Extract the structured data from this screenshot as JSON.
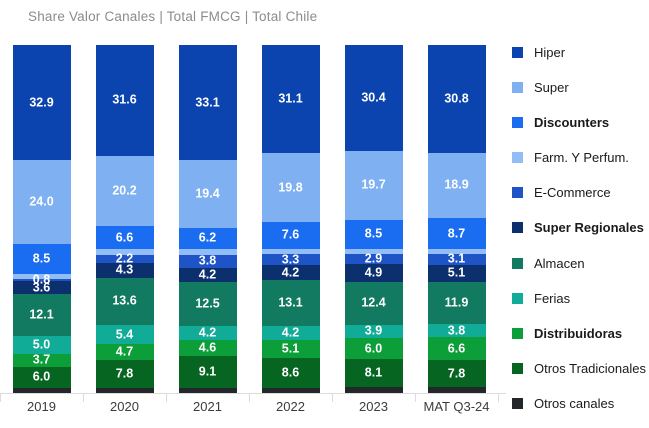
{
  "title": "Share Valor Canales | Total FMCG | Total Chile",
  "x_axis": {
    "labels": [
      "2019",
      "2020",
      "2021",
      "2022",
      "2023",
      "MAT Q3-24"
    ]
  },
  "colors": {
    "axis_line": "#dcdcdc",
    "title_text": "#8c8c8c",
    "value_label_text": "#ffffff"
  },
  "chart_data": {
    "type": "bar",
    "stacked": true,
    "percent_total": 100,
    "title": "Share Valor Canales | Total FMCG | Total Chile",
    "categories": [
      "2019",
      "2020",
      "2021",
      "2022",
      "2023",
      "MAT Q3-24"
    ],
    "legend_position": "right",
    "grid": false,
    "series": [
      {
        "name": "Hiper",
        "color": "#0b44af",
        "bold": false,
        "show_labels": true,
        "values": [
          32.9,
          31.6,
          33.1,
          31.1,
          30.4,
          30.8
        ]
      },
      {
        "name": "Super",
        "color": "#7fb0f2",
        "bold": false,
        "show_labels": true,
        "values": [
          24.0,
          20.2,
          19.4,
          19.8,
          19.7,
          18.9
        ]
      },
      {
        "name": "Discounters",
        "color": "#1a6df0",
        "bold": true,
        "show_labels": true,
        "values": [
          8.5,
          6.6,
          6.2,
          7.6,
          8.5,
          8.7
        ]
      },
      {
        "name": "Farm. Y Perfum.",
        "color": "#93bdf6",
        "bold": false,
        "show_labels": false,
        "estimated": true,
        "values": [
          1.4,
          1.6,
          1.5,
          1.5,
          1.5,
          1.4
        ]
      },
      {
        "name": "E-Commerce",
        "color": "#1e54c6",
        "bold": false,
        "show_labels": true,
        "values": [
          0.8,
          2.2,
          3.8,
          3.3,
          2.9,
          3.1
        ]
      },
      {
        "name": "Super Regionales",
        "color": "#0c2f6e",
        "bold": true,
        "show_labels": true,
        "values": [
          3.6,
          4.3,
          4.2,
          4.2,
          4.9,
          5.1
        ]
      },
      {
        "name": "Almacen",
        "color": "#127a60",
        "bold": false,
        "show_labels": true,
        "values": [
          12.1,
          13.6,
          12.5,
          13.1,
          12.4,
          11.9
        ]
      },
      {
        "name": "Ferias",
        "color": "#10ac97",
        "bold": false,
        "show_labels": true,
        "values": [
          5.0,
          5.4,
          4.2,
          4.2,
          3.9,
          3.8
        ]
      },
      {
        "name": "Distribuidoras",
        "color": "#0c9e38",
        "bold": true,
        "show_labels": true,
        "values": [
          3.7,
          4.7,
          4.6,
          5.1,
          6.0,
          6.6
        ]
      },
      {
        "name": "Otros Tradicionales",
        "color": "#076522",
        "bold": false,
        "show_labels": true,
        "values": [
          6.0,
          7.8,
          9.1,
          8.6,
          8.1,
          7.8
        ]
      },
      {
        "name": "Otros canales",
        "color": "#23272c",
        "bold": false,
        "show_labels": false,
        "estimated": true,
        "values": [
          1.5,
          1.5,
          1.4,
          1.5,
          1.6,
          1.6
        ]
      }
    ]
  }
}
